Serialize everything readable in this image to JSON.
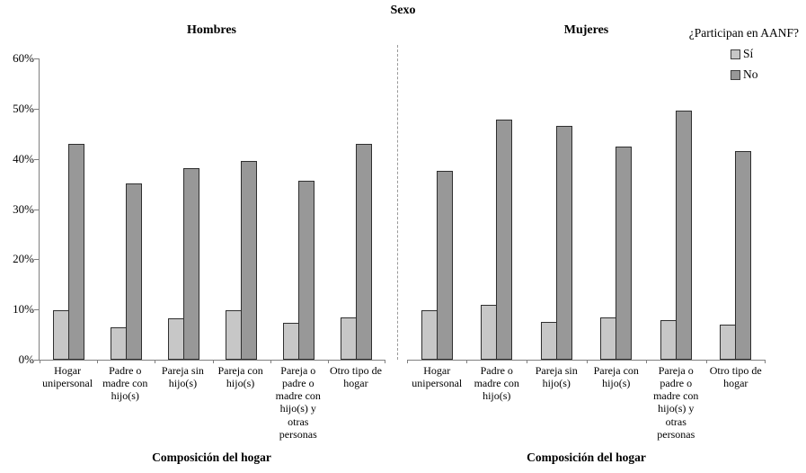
{
  "title": "Sexo",
  "legend": {
    "title": "¿Participan en AANF?",
    "items": [
      {
        "label": "Sí",
        "color": "#c7c7c7"
      },
      {
        "label": "No",
        "color": "#989898"
      }
    ]
  },
  "x_axis_title": "Composición del hogar",
  "chart_data": {
    "type": "bar",
    "title": "Sexo",
    "xlabel": "Composición del hogar",
    "ylabel": "",
    "ylim": [
      0,
      60
    ],
    "yticks": [
      "0%",
      "10%",
      "20%",
      "30%",
      "40%",
      "50%",
      "60%"
    ],
    "grid": false,
    "legend_position": "top-right",
    "legend_title": "¿Participan en AANF?",
    "categories": [
      "Hogar unipersonal",
      "Padre o madre con hijo(s)",
      "Pareja sin hijo(s)",
      "Pareja con hijo(s)",
      "Pareja o padre o madre con hijo(s) y otras personas",
      "Otro tipo de hogar"
    ],
    "panels": [
      {
        "name": "Hombres",
        "series": [
          {
            "name": "Sí",
            "color": "#c7c7c7",
            "values": [
              9.9,
              6.4,
              8.3,
              9.9,
              7.4,
              8.4
            ]
          },
          {
            "name": "No",
            "color": "#989898",
            "values": [
              43.0,
              35.1,
              38.1,
              39.6,
              35.6,
              43.0
            ]
          }
        ]
      },
      {
        "name": "Mujeres",
        "series": [
          {
            "name": "Sí",
            "color": "#c7c7c7",
            "values": [
              9.9,
              11.0,
              7.5,
              8.4,
              7.9,
              7.0
            ]
          },
          {
            "name": "No",
            "color": "#989898",
            "values": [
              37.6,
              47.9,
              46.5,
              42.5,
              49.7,
              41.6
            ]
          }
        ]
      }
    ]
  }
}
